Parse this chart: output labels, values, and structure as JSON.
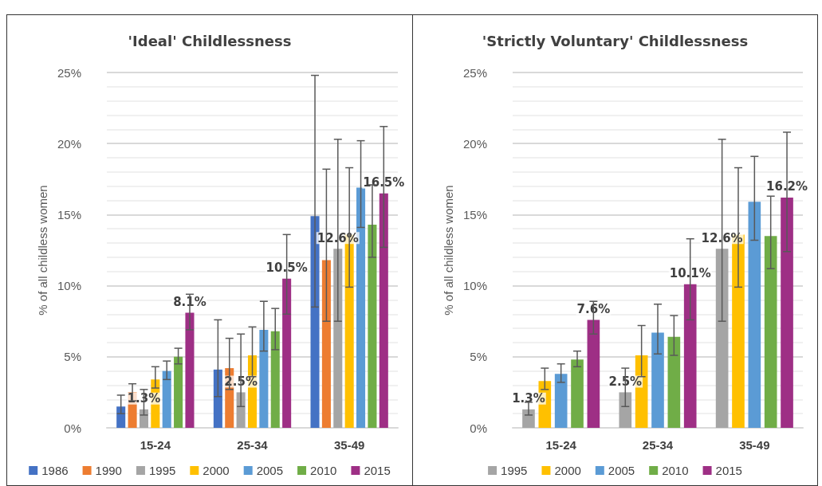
{
  "chart_data": [
    {
      "type": "bar",
      "title": "'Ideal' Childlessness",
      "ylabel": "% of all childless women",
      "categories": [
        "15-24",
        "25-34",
        "35-49"
      ],
      "series": [
        {
          "name": "1986",
          "color": "#4472c4",
          "values": [
            1.5,
            4.1,
            14.9
          ],
          "errors": [
            [
              1.0,
              2.3
            ],
            [
              2.2,
              7.6
            ],
            [
              8.5,
              24.8
            ]
          ]
        },
        {
          "name": "1990",
          "color": "#ed7d31",
          "values": [
            2.5,
            4.2,
            11.8
          ],
          "errors": [
            [
              1.9,
              3.1
            ],
            [
              2.7,
              6.3
            ],
            [
              7.5,
              18.2
            ]
          ]
        },
        {
          "name": "1995",
          "color": "#a5a5a5",
          "values": [
            1.3,
            2.5,
            12.6
          ],
          "errors": [
            [
              0.9,
              2.7
            ],
            [
              1.5,
              6.6
            ],
            [
              7.5,
              20.3
            ]
          ],
          "value_labels": [
            "1.3%",
            "2.5%",
            "12.6%"
          ]
        },
        {
          "name": "2000",
          "color": "#ffc000",
          "values": [
            3.4,
            5.1,
            13.6
          ],
          "errors": [
            [
              2.8,
              4.3
            ],
            [
              3.6,
              7.1
            ],
            [
              9.9,
              18.3
            ]
          ]
        },
        {
          "name": "2005",
          "color": "#5b9bd5",
          "values": [
            4.0,
            6.9,
            16.9
          ],
          "errors": [
            [
              3.4,
              4.7
            ],
            [
              5.4,
              8.9
            ],
            [
              14.1,
              20.2
            ]
          ]
        },
        {
          "name": "2010",
          "color": "#70ad47",
          "values": [
            5.0,
            6.8,
            14.3
          ],
          "errors": [
            [
              4.5,
              5.6
            ],
            [
              5.5,
              8.4
            ],
            [
              12.0,
              17.1
            ]
          ]
        },
        {
          "name": "2015",
          "color": "#9e2f85",
          "values": [
            8.1,
            10.5,
            16.5
          ],
          "errors": [
            [
              6.9,
              9.4
            ],
            [
              8.0,
              13.6
            ],
            [
              12.7,
              21.2
            ]
          ],
          "value_labels": [
            "8.1%",
            "10.5%",
            "16.5%"
          ]
        }
      ],
      "ylim": [
        0,
        25
      ],
      "yticks": [
        {
          "value": 0,
          "label": "0%"
        },
        {
          "value": 1,
          "label": null
        },
        {
          "value": 2,
          "label": null
        },
        {
          "value": 3,
          "label": null
        },
        {
          "value": 4,
          "label": null
        },
        {
          "value": 5,
          "label": "5%"
        },
        {
          "value": 6,
          "label": null
        },
        {
          "value": 7,
          "label": null
        },
        {
          "value": 8,
          "label": null
        },
        {
          "value": 9,
          "label": null
        },
        {
          "value": 10,
          "label": "10%"
        },
        {
          "value": 11,
          "label": null
        },
        {
          "value": 12,
          "label": null
        },
        {
          "value": 13,
          "label": null
        },
        {
          "value": 14,
          "label": null
        },
        {
          "value": 15,
          "label": "15%"
        },
        {
          "value": 16,
          "label": null
        },
        {
          "value": 17,
          "label": null
        },
        {
          "value": 18,
          "label": null
        },
        {
          "value": 19,
          "label": null
        },
        {
          "value": 20,
          "label": "20%"
        },
        {
          "value": 21,
          "label": null
        },
        {
          "value": 22,
          "label": null
        },
        {
          "value": 23,
          "label": null
        },
        {
          "value": 24,
          "label": null
        },
        {
          "value": 25,
          "label": "25%"
        }
      ],
      "grid": "y",
      "legend": "bottom"
    },
    {
      "type": "bar",
      "title": "'Strictly Voluntary' Childlessness",
      "ylabel": "% of all childless women",
      "categories": [
        "15-24",
        "25-34",
        "35-49"
      ],
      "series": [
        {
          "name": "1995",
          "color": "#a5a5a5",
          "values": [
            1.3,
            2.5,
            12.6
          ],
          "errors": [
            [
              0.9,
              1.8
            ],
            [
              1.5,
              4.2
            ],
            [
              7.5,
              20.3
            ]
          ],
          "value_labels": [
            "1.3%",
            "2.5%",
            "12.6%"
          ]
        },
        {
          "name": "2000",
          "color": "#ffc000",
          "values": [
            3.3,
            5.1,
            13.6
          ],
          "errors": [
            [
              2.7,
              4.2
            ],
            [
              3.6,
              7.2
            ],
            [
              9.9,
              18.3
            ]
          ]
        },
        {
          "name": "2005",
          "color": "#5b9bd5",
          "values": [
            3.8,
            6.7,
            15.9
          ],
          "errors": [
            [
              3.2,
              4.5
            ],
            [
              5.2,
              8.7
            ],
            [
              13.2,
              19.1
            ]
          ]
        },
        {
          "name": "2010",
          "color": "#70ad47",
          "values": [
            4.8,
            6.4,
            13.5
          ],
          "errors": [
            [
              4.3,
              5.4
            ],
            [
              5.1,
              7.9
            ],
            [
              11.2,
              16.3
            ]
          ]
        },
        {
          "name": "2015",
          "color": "#9e2f85",
          "values": [
            7.6,
            10.1,
            16.2
          ],
          "errors": [
            [
              6.6,
              8.9
            ],
            [
              7.6,
              13.3
            ],
            [
              12.4,
              20.8
            ]
          ],
          "value_labels": [
            "7.6%",
            "10.1%",
            "16.2%"
          ]
        }
      ],
      "ylim": [
        0,
        25
      ],
      "yticks": [
        {
          "value": 0,
          "label": "0%"
        },
        {
          "value": 1,
          "label": null
        },
        {
          "value": 2,
          "label": null
        },
        {
          "value": 3,
          "label": null
        },
        {
          "value": 4,
          "label": null
        },
        {
          "value": 5,
          "label": "5%"
        },
        {
          "value": 6,
          "label": null
        },
        {
          "value": 7,
          "label": null
        },
        {
          "value": 8,
          "label": null
        },
        {
          "value": 9,
          "label": null
        },
        {
          "value": 10,
          "label": "10%"
        },
        {
          "value": 11,
          "label": null
        },
        {
          "value": 12,
          "label": null
        },
        {
          "value": 13,
          "label": null
        },
        {
          "value": 14,
          "label": null
        },
        {
          "value": 15,
          "label": "15%"
        },
        {
          "value": 16,
          "label": null
        },
        {
          "value": 17,
          "label": null
        },
        {
          "value": 18,
          "label": null
        },
        {
          "value": 19,
          "label": null
        },
        {
          "value": 20,
          "label": "20%"
        },
        {
          "value": 21,
          "label": null
        },
        {
          "value": 22,
          "label": null
        },
        {
          "value": 23,
          "label": null
        },
        {
          "value": 24,
          "label": null
        },
        {
          "value": 25,
          "label": "25%"
        }
      ],
      "grid": "y",
      "legend": "bottom"
    }
  ]
}
